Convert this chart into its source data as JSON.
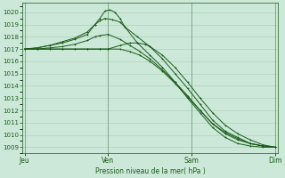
{
  "bg_color": "#cce8d8",
  "grid_color": "#aaccb8",
  "line_color": "#1a5c1a",
  "ylabel_values": [
    1009,
    1010,
    1011,
    1012,
    1013,
    1014,
    1015,
    1016,
    1017,
    1018,
    1019,
    1020
  ],
  "ylim": [
    1008.5,
    1020.8
  ],
  "xlabel": "Pression niveau de la mer( hPa )",
  "xtick_labels": [
    "Jeu",
    "Ven",
    "Sam",
    "Dim"
  ],
  "xtick_positions": [
    0,
    0.333,
    0.667,
    1.0
  ],
  "lines": [
    {
      "x": [
        0.0,
        0.05,
        0.1,
        0.15,
        0.2,
        0.25,
        0.28,
        0.3,
        0.32,
        0.34,
        0.36,
        0.38,
        0.4,
        0.45,
        0.5,
        0.55,
        0.6,
        0.65,
        0.7,
        0.75,
        0.8,
        0.85,
        0.9,
        0.95,
        1.0
      ],
      "y": [
        1017.0,
        1017.1,
        1017.3,
        1017.5,
        1017.8,
        1018.2,
        1019.0,
        1019.5,
        1020.1,
        1020.2,
        1020.0,
        1019.5,
        1018.8,
        1017.5,
        1016.5,
        1015.5,
        1014.3,
        1013.0,
        1011.8,
        1010.6,
        1009.8,
        1009.3,
        1009.1,
        1009.0,
        1009.0
      ]
    },
    {
      "x": [
        0.0,
        0.05,
        0.1,
        0.15,
        0.2,
        0.25,
        0.28,
        0.3,
        0.32,
        0.35,
        0.38,
        0.4,
        0.45,
        0.5,
        0.55,
        0.6,
        0.65,
        0.7,
        0.75,
        0.8,
        0.85,
        0.9,
        0.95,
        1.0
      ],
      "y": [
        1017.0,
        1017.1,
        1017.3,
        1017.6,
        1017.9,
        1018.4,
        1019.0,
        1019.3,
        1019.5,
        1019.4,
        1019.2,
        1018.8,
        1018.0,
        1017.2,
        1016.2,
        1015.0,
        1013.8,
        1012.5,
        1011.2,
        1010.3,
        1009.8,
        1009.3,
        1009.1,
        1009.0
      ]
    },
    {
      "x": [
        0.0,
        0.05,
        0.1,
        0.15,
        0.2,
        0.25,
        0.28,
        0.3,
        0.333,
        0.38,
        0.42,
        0.46,
        0.5,
        0.55,
        0.6,
        0.65,
        0.7,
        0.75,
        0.8,
        0.85,
        0.9,
        0.95,
        1.0
      ],
      "y": [
        1017.0,
        1017.0,
        1017.1,
        1017.2,
        1017.4,
        1017.7,
        1018.0,
        1018.1,
        1018.2,
        1017.8,
        1017.3,
        1016.8,
        1016.2,
        1015.3,
        1014.3,
        1013.2,
        1012.0,
        1010.9,
        1010.2,
        1009.7,
        1009.3,
        1009.1,
        1009.0
      ]
    },
    {
      "x": [
        0.0,
        0.05,
        0.1,
        0.15,
        0.2,
        0.25,
        0.3,
        0.333,
        0.38,
        0.42,
        0.46,
        0.5,
        0.55,
        0.6,
        0.65,
        0.7,
        0.75,
        0.8,
        0.85,
        0.9,
        0.95,
        1.0
      ],
      "y": [
        1017.0,
        1017.0,
        1017.0,
        1017.0,
        1017.0,
        1017.0,
        1017.0,
        1017.0,
        1017.0,
        1016.8,
        1016.5,
        1016.0,
        1015.2,
        1014.2,
        1013.1,
        1012.0,
        1010.9,
        1010.1,
        1009.6,
        1009.3,
        1009.1,
        1009.0
      ]
    },
    {
      "x": [
        0.0,
        0.05,
        0.1,
        0.15,
        0.2,
        0.25,
        0.3,
        0.333,
        0.38,
        0.42,
        0.45,
        0.48,
        0.5,
        0.55,
        0.6,
        0.65,
        0.7,
        0.75,
        0.8,
        0.85,
        0.9,
        0.95,
        1.0
      ],
      "y": [
        1017.0,
        1017.0,
        1017.0,
        1017.0,
        1017.0,
        1017.0,
        1017.0,
        1017.0,
        1017.3,
        1017.5,
        1017.5,
        1017.4,
        1017.2,
        1016.5,
        1015.5,
        1014.3,
        1013.0,
        1011.8,
        1010.8,
        1010.1,
        1009.6,
        1009.2,
        1009.0
      ]
    }
  ]
}
